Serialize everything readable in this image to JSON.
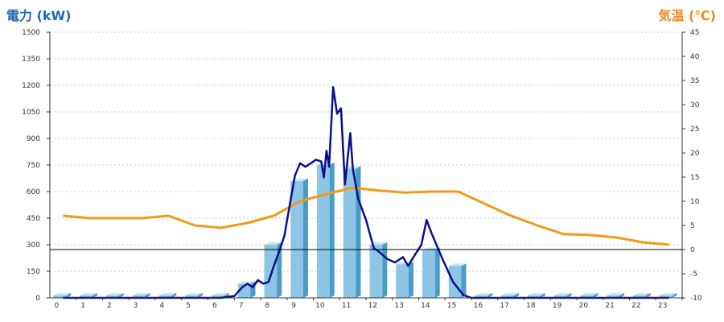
{
  "chart_data": {
    "type": "bar",
    "left_axis_label": "電力 (kW)",
    "right_axis_label": "気温 (℃)",
    "left_ylim": [
      0,
      1500
    ],
    "right_ylim": [
      -10,
      45
    ],
    "left_ticks": [
      0,
      150,
      300,
      450,
      600,
      750,
      900,
      1050,
      1200,
      1350,
      1500
    ],
    "right_ticks": [
      -10,
      -5,
      0,
      5,
      10,
      15,
      20,
      25,
      30,
      35,
      40,
      45
    ],
    "categories": [
      "0",
      "1",
      "2",
      "3",
      "4",
      "5",
      "6",
      "7",
      "8",
      "9",
      "10",
      "11",
      "12",
      "13",
      "14",
      "15",
      "16",
      "17",
      "18",
      "19",
      "20",
      "21",
      "22",
      "23"
    ],
    "bar_values": [
      0,
      0,
      0,
      0,
      0,
      0,
      0,
      80,
      300,
      660,
      750,
      730,
      300,
      190,
      270,
      180,
      0,
      0,
      0,
      0,
      0,
      0,
      0,
      0
    ],
    "power_line": [
      [
        0,
        0
      ],
      [
        1,
        0
      ],
      [
        2,
        0
      ],
      [
        3,
        0
      ],
      [
        4,
        0
      ],
      [
        5,
        0
      ],
      [
        6,
        0
      ],
      [
        6.5,
        10
      ],
      [
        6.8,
        60
      ],
      [
        7.0,
        80
      ],
      [
        7.2,
        60
      ],
      [
        7.4,
        100
      ],
      [
        7.6,
        80
      ],
      [
        7.8,
        90
      ],
      [
        8.0,
        180
      ],
      [
        8.2,
        260
      ],
      [
        8.4,
        350
      ],
      [
        8.6,
        520
      ],
      [
        8.8,
        690
      ],
      [
        9.0,
        760
      ],
      [
        9.2,
        740
      ],
      [
        9.4,
        760
      ],
      [
        9.6,
        780
      ],
      [
        9.8,
        770
      ],
      [
        9.9,
        680
      ],
      [
        10.0,
        830
      ],
      [
        10.1,
        740
      ],
      [
        10.25,
        1190
      ],
      [
        10.4,
        1040
      ],
      [
        10.55,
        1070
      ],
      [
        10.7,
        640
      ],
      [
        10.9,
        930
      ],
      [
        11.0,
        730
      ],
      [
        11.2,
        560
      ],
      [
        11.5,
        440
      ],
      [
        11.8,
        280
      ],
      [
        12.0,
        260
      ],
      [
        12.3,
        220
      ],
      [
        12.6,
        200
      ],
      [
        12.9,
        230
      ],
      [
        13.1,
        180
      ],
      [
        13.3,
        230
      ],
      [
        13.6,
        300
      ],
      [
        13.8,
        440
      ],
      [
        14.0,
        360
      ],
      [
        14.4,
        220
      ],
      [
        14.8,
        90
      ],
      [
        15.2,
        15
      ],
      [
        15.5,
        0
      ],
      [
        16,
        0
      ],
      [
        17,
        0
      ],
      [
        18,
        0
      ],
      [
        19,
        0
      ],
      [
        20,
        0
      ],
      [
        21,
        0
      ],
      [
        22,
        0
      ],
      [
        23,
        0
      ]
    ],
    "temperature_line": [
      [
        0,
        7
      ],
      [
        1,
        6.5
      ],
      [
        2,
        6.5
      ],
      [
        3,
        6.5
      ],
      [
        4,
        7
      ],
      [
        5,
        5
      ],
      [
        6,
        4.5
      ],
      [
        7,
        5.5
      ],
      [
        8,
        7
      ],
      [
        9,
        10
      ],
      [
        10,
        11.5
      ],
      [
        11,
        12.8
      ],
      [
        12,
        12.2
      ],
      [
        13,
        11.8
      ],
      [
        14,
        12
      ],
      [
        15,
        12
      ],
      [
        16,
        9.5
      ],
      [
        17,
        7
      ],
      [
        18,
        5
      ],
      [
        19,
        3.2
      ],
      [
        20,
        3
      ],
      [
        21,
        2.5
      ],
      [
        22,
        1.5
      ],
      [
        23,
        1
      ]
    ],
    "colors": {
      "bar_front": "#8cc5e6",
      "bar_side": "#4a9cc6",
      "bar_top": "#c9e6f6",
      "power_line": "#0a0f8c",
      "temperature_line": "#f29a18",
      "left_label": "#1f67b1",
      "right_label": "#f08a1c",
      "grid": "#c8c8c8",
      "zero_temp_line": "#000000"
    }
  }
}
